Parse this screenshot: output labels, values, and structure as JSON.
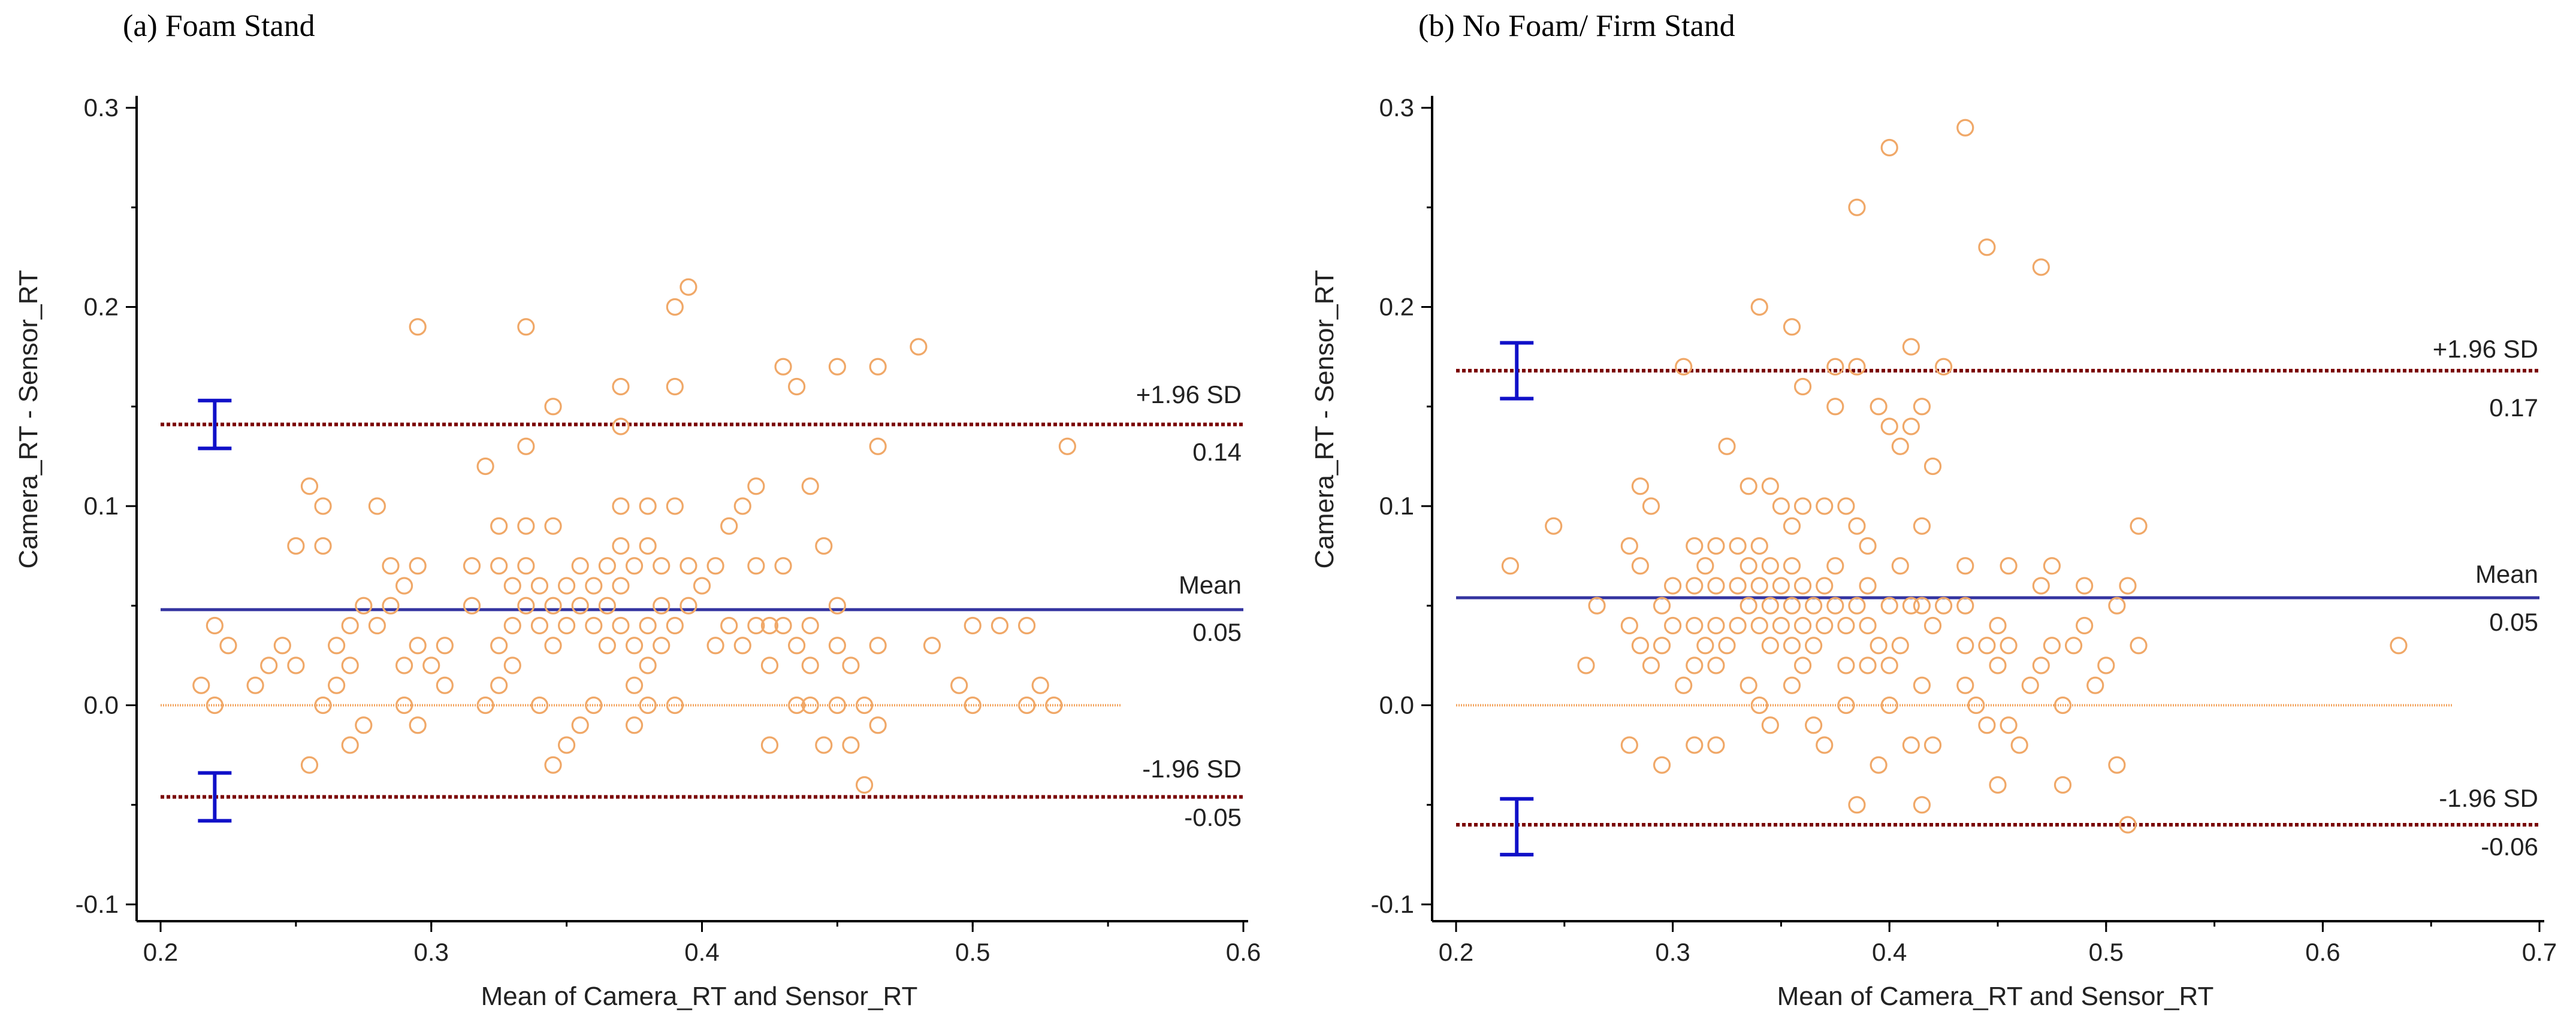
{
  "chart_data": [
    {
      "type": "scatter",
      "title": "(a) Foam Stand",
      "xlabel": "Mean of Camera_RT and Sensor_RT",
      "ylabel": "Camera_RT - Sensor_RT",
      "xlim": [
        0.2,
        0.6
      ],
      "ylim": [
        -0.1,
        0.3
      ],
      "xticks": [
        "0.2",
        "0.3",
        "0.4",
        "0.5",
        "0.6"
      ],
      "yticks": [
        "-0.1",
        "0.0",
        "0.1",
        "0.2",
        "0.3"
      ],
      "zero_line_xrange": [
        0.2,
        0.555
      ],
      "mean": {
        "value": 0.048,
        "label": "Mean",
        "value_label": "0.05"
      },
      "upper_loa": {
        "value": 0.141,
        "label": "+1.96 SD",
        "value_label": "0.14",
        "ci": [
          0.129,
          0.153
        ]
      },
      "lower_loa": {
        "value": -0.046,
        "label": "-1.96 SD",
        "value_label": "-0.05",
        "ci": [
          -0.058,
          -0.034
        ]
      },
      "ci_x": 0.22,
      "points": [
        [
          0.215,
          0.01
        ],
        [
          0.22,
          0.0
        ],
        [
          0.22,
          0.04
        ],
        [
          0.225,
          0.03
        ],
        [
          0.235,
          0.01
        ],
        [
          0.24,
          0.02
        ],
        [
          0.245,
          0.03
        ],
        [
          0.25,
          0.08
        ],
        [
          0.25,
          0.02
        ],
        [
          0.255,
          0.11
        ],
        [
          0.255,
          -0.03
        ],
        [
          0.26,
          0.1
        ],
        [
          0.26,
          0.08
        ],
        [
          0.26,
          0.0
        ],
        [
          0.265,
          0.03
        ],
        [
          0.265,
          0.01
        ],
        [
          0.27,
          0.04
        ],
        [
          0.27,
          0.02
        ],
        [
          0.27,
          -0.02
        ],
        [
          0.275,
          0.05
        ],
        [
          0.275,
          -0.01
        ],
        [
          0.28,
          0.1
        ],
        [
          0.28,
          0.04
        ],
        [
          0.285,
          0.07
        ],
        [
          0.285,
          0.05
        ],
        [
          0.29,
          0.06
        ],
        [
          0.29,
          0.02
        ],
        [
          0.29,
          0.0
        ],
        [
          0.295,
          0.19
        ],
        [
          0.295,
          0.07
        ],
        [
          0.295,
          0.03
        ],
        [
          0.295,
          -0.01
        ],
        [
          0.3,
          0.02
        ],
        [
          0.305,
          0.03
        ],
        [
          0.305,
          0.01
        ],
        [
          0.315,
          0.07
        ],
        [
          0.315,
          0.05
        ],
        [
          0.32,
          0.12
        ],
        [
          0.32,
          0.0
        ],
        [
          0.325,
          0.09
        ],
        [
          0.325,
          0.07
        ],
        [
          0.325,
          0.03
        ],
        [
          0.325,
          0.01
        ],
        [
          0.33,
          0.06
        ],
        [
          0.33,
          0.04
        ],
        [
          0.33,
          0.02
        ],
        [
          0.335,
          0.19
        ],
        [
          0.335,
          0.13
        ],
        [
          0.335,
          0.09
        ],
        [
          0.335,
          0.07
        ],
        [
          0.335,
          0.05
        ],
        [
          0.34,
          0.06
        ],
        [
          0.34,
          0.04
        ],
        [
          0.34,
          0.0
        ],
        [
          0.345,
          0.15
        ],
        [
          0.345,
          0.09
        ],
        [
          0.345,
          0.05
        ],
        [
          0.345,
          0.03
        ],
        [
          0.345,
          -0.03
        ],
        [
          0.35,
          0.06
        ],
        [
          0.35,
          0.04
        ],
        [
          0.35,
          -0.02
        ],
        [
          0.355,
          0.07
        ],
        [
          0.355,
          0.05
        ],
        [
          0.355,
          -0.01
        ],
        [
          0.36,
          0.06
        ],
        [
          0.36,
          0.04
        ],
        [
          0.36,
          0.0
        ],
        [
          0.365,
          0.07
        ],
        [
          0.365,
          0.05
        ],
        [
          0.365,
          0.03
        ],
        [
          0.37,
          0.16
        ],
        [
          0.37,
          0.14
        ],
        [
          0.37,
          0.1
        ],
        [
          0.37,
          0.08
        ],
        [
          0.37,
          0.06
        ],
        [
          0.37,
          0.04
        ],
        [
          0.375,
          0.07
        ],
        [
          0.375,
          0.03
        ],
        [
          0.375,
          0.01
        ],
        [
          0.375,
          -0.01
        ],
        [
          0.38,
          0.1
        ],
        [
          0.38,
          0.08
        ],
        [
          0.38,
          0.04
        ],
        [
          0.38,
          0.02
        ],
        [
          0.38,
          0.0
        ],
        [
          0.385,
          0.07
        ],
        [
          0.385,
          0.05
        ],
        [
          0.385,
          0.03
        ],
        [
          0.39,
          0.2
        ],
        [
          0.39,
          0.16
        ],
        [
          0.39,
          0.1
        ],
        [
          0.39,
          0.04
        ],
        [
          0.39,
          0.0
        ],
        [
          0.395,
          0.21
        ],
        [
          0.395,
          0.07
        ],
        [
          0.395,
          0.05
        ],
        [
          0.4,
          0.06
        ],
        [
          0.405,
          0.07
        ],
        [
          0.405,
          0.03
        ],
        [
          0.41,
          0.09
        ],
        [
          0.41,
          0.04
        ],
        [
          0.415,
          0.1
        ],
        [
          0.415,
          0.03
        ],
        [
          0.42,
          0.11
        ],
        [
          0.42,
          0.07
        ],
        [
          0.42,
          0.04
        ],
        [
          0.425,
          0.04
        ],
        [
          0.425,
          0.02
        ],
        [
          0.425,
          -0.02
        ],
        [
          0.43,
          0.17
        ],
        [
          0.43,
          0.07
        ],
        [
          0.43,
          0.04
        ],
        [
          0.435,
          0.16
        ],
        [
          0.435,
          0.03
        ],
        [
          0.435,
          0.0
        ],
        [
          0.44,
          0.11
        ],
        [
          0.44,
          0.04
        ],
        [
          0.44,
          0.02
        ],
        [
          0.44,
          0.0
        ],
        [
          0.445,
          0.08
        ],
        [
          0.445,
          -0.02
        ],
        [
          0.45,
          0.17
        ],
        [
          0.45,
          0.05
        ],
        [
          0.45,
          0.03
        ],
        [
          0.45,
          0.0
        ],
        [
          0.455,
          0.02
        ],
        [
          0.455,
          -0.02
        ],
        [
          0.46,
          -0.04
        ],
        [
          0.46,
          0.0
        ],
        [
          0.465,
          0.17
        ],
        [
          0.465,
          0.13
        ],
        [
          0.465,
          0.03
        ],
        [
          0.465,
          -0.01
        ],
        [
          0.48,
          0.18
        ],
        [
          0.485,
          0.03
        ],
        [
          0.495,
          0.01
        ],
        [
          0.5,
          0.04
        ],
        [
          0.5,
          0.0
        ],
        [
          0.51,
          0.04
        ],
        [
          0.52,
          0.04
        ],
        [
          0.52,
          0.0
        ],
        [
          0.525,
          0.01
        ],
        [
          0.53,
          0.0
        ],
        [
          0.535,
          0.13
        ]
      ]
    },
    {
      "type": "scatter",
      "title": "(b) No Foam/ Firm Stand",
      "xlabel": "Mean of Camera_RT and Sensor_RT",
      "ylabel": "Camera_RT - Sensor_RT",
      "xlim": [
        0.2,
        0.7
      ],
      "ylim": [
        -0.1,
        0.3
      ],
      "xticks": [
        "0.2",
        "0.3",
        "0.4",
        "0.5",
        "0.6",
        "0.7"
      ],
      "yticks": [
        "-0.1",
        "0.0",
        "0.1",
        "0.2",
        "0.3"
      ],
      "zero_line_xrange": [
        0.2,
        0.66
      ],
      "mean": {
        "value": 0.054,
        "label": "Mean",
        "value_label": "0.05"
      },
      "upper_loa": {
        "value": 0.168,
        "label": "+1.96 SD",
        "value_label": "0.17",
        "ci": [
          0.154,
          0.182
        ]
      },
      "lower_loa": {
        "value": -0.06,
        "label": "-1.96 SD",
        "value_label": "-0.06",
        "ci": [
          -0.075,
          -0.047
        ]
      },
      "ci_x": 0.228,
      "points": [
        [
          0.225,
          0.07
        ],
        [
          0.245,
          0.09
        ],
        [
          0.26,
          0.02
        ],
        [
          0.265,
          0.05
        ],
        [
          0.28,
          0.08
        ],
        [
          0.28,
          0.04
        ],
        [
          0.28,
          -0.02
        ],
        [
          0.285,
          0.11
        ],
        [
          0.285,
          0.07
        ],
        [
          0.285,
          0.03
        ],
        [
          0.29,
          0.1
        ],
        [
          0.29,
          0.02
        ],
        [
          0.295,
          0.05
        ],
        [
          0.295,
          0.03
        ],
        [
          0.295,
          -0.03
        ],
        [
          0.3,
          0.06
        ],
        [
          0.3,
          0.04
        ],
        [
          0.305,
          0.17
        ],
        [
          0.305,
          0.01
        ],
        [
          0.31,
          0.08
        ],
        [
          0.31,
          0.06
        ],
        [
          0.31,
          0.04
        ],
        [
          0.31,
          0.02
        ],
        [
          0.31,
          -0.02
        ],
        [
          0.315,
          0.07
        ],
        [
          0.315,
          0.03
        ],
        [
          0.32,
          0.08
        ],
        [
          0.32,
          0.06
        ],
        [
          0.32,
          0.04
        ],
        [
          0.32,
          0.02
        ],
        [
          0.32,
          -0.02
        ],
        [
          0.325,
          0.13
        ],
        [
          0.325,
          0.03
        ],
        [
          0.33,
          0.08
        ],
        [
          0.33,
          0.06
        ],
        [
          0.33,
          0.04
        ],
        [
          0.335,
          0.11
        ],
        [
          0.335,
          0.07
        ],
        [
          0.335,
          0.05
        ],
        [
          0.335,
          0.01
        ],
        [
          0.34,
          0.2
        ],
        [
          0.34,
          0.08
        ],
        [
          0.34,
          0.06
        ],
        [
          0.34,
          0.04
        ],
        [
          0.34,
          0.0
        ],
        [
          0.345,
          0.11
        ],
        [
          0.345,
          0.07
        ],
        [
          0.345,
          0.05
        ],
        [
          0.345,
          0.03
        ],
        [
          0.345,
          -0.01
        ],
        [
          0.35,
          0.1
        ],
        [
          0.35,
          0.06
        ],
        [
          0.35,
          0.04
        ],
        [
          0.355,
          0.19
        ],
        [
          0.355,
          0.09
        ],
        [
          0.355,
          0.07
        ],
        [
          0.355,
          0.05
        ],
        [
          0.355,
          0.03
        ],
        [
          0.355,
          0.01
        ],
        [
          0.36,
          0.16
        ],
        [
          0.36,
          0.1
        ],
        [
          0.36,
          0.06
        ],
        [
          0.36,
          0.04
        ],
        [
          0.36,
          0.02
        ],
        [
          0.365,
          0.05
        ],
        [
          0.365,
          0.03
        ],
        [
          0.365,
          -0.01
        ],
        [
          0.37,
          0.1
        ],
        [
          0.37,
          0.06
        ],
        [
          0.37,
          0.04
        ],
        [
          0.37,
          -0.02
        ],
        [
          0.375,
          0.17
        ],
        [
          0.375,
          0.15
        ],
        [
          0.375,
          0.07
        ],
        [
          0.375,
          0.05
        ],
        [
          0.38,
          0.1
        ],
        [
          0.38,
          0.04
        ],
        [
          0.38,
          0.02
        ],
        [
          0.38,
          0.0
        ],
        [
          0.385,
          0.25
        ],
        [
          0.385,
          0.17
        ],
        [
          0.385,
          0.09
        ],
        [
          0.385,
          0.05
        ],
        [
          0.385,
          -0.05
        ],
        [
          0.39,
          0.08
        ],
        [
          0.39,
          0.06
        ],
        [
          0.39,
          0.04
        ],
        [
          0.39,
          0.02
        ],
        [
          0.395,
          0.15
        ],
        [
          0.395,
          0.03
        ],
        [
          0.395,
          -0.03
        ],
        [
          0.4,
          0.28
        ],
        [
          0.4,
          0.14
        ],
        [
          0.4,
          0.05
        ],
        [
          0.4,
          0.02
        ],
        [
          0.4,
          0.0
        ],
        [
          0.405,
          0.13
        ],
        [
          0.405,
          0.07
        ],
        [
          0.405,
          0.03
        ],
        [
          0.41,
          0.18
        ],
        [
          0.41,
          0.14
        ],
        [
          0.41,
          0.05
        ],
        [
          0.41,
          -0.02
        ],
        [
          0.415,
          0.15
        ],
        [
          0.415,
          0.09
        ],
        [
          0.415,
          0.05
        ],
        [
          0.415,
          0.01
        ],
        [
          0.415,
          -0.05
        ],
        [
          0.42,
          0.12
        ],
        [
          0.42,
          0.04
        ],
        [
          0.42,
          -0.02
        ],
        [
          0.425,
          0.17
        ],
        [
          0.425,
          0.05
        ],
        [
          0.435,
          0.29
        ],
        [
          0.435,
          0.07
        ],
        [
          0.435,
          0.05
        ],
        [
          0.435,
          0.03
        ],
        [
          0.435,
          0.01
        ],
        [
          0.44,
          0.0
        ],
        [
          0.445,
          0.23
        ],
        [
          0.445,
          0.03
        ],
        [
          0.445,
          -0.01
        ],
        [
          0.45,
          0.04
        ],
        [
          0.45,
          0.02
        ],
        [
          0.45,
          -0.04
        ],
        [
          0.455,
          0.07
        ],
        [
          0.455,
          0.03
        ],
        [
          0.455,
          -0.01
        ],
        [
          0.46,
          -0.02
        ],
        [
          0.465,
          0.01
        ],
        [
          0.47,
          0.22
        ],
        [
          0.47,
          0.06
        ],
        [
          0.47,
          0.02
        ],
        [
          0.475,
          0.07
        ],
        [
          0.475,
          0.03
        ],
        [
          0.48,
          0.0
        ],
        [
          0.48,
          -0.04
        ],
        [
          0.485,
          0.03
        ],
        [
          0.49,
          0.06
        ],
        [
          0.49,
          0.04
        ],
        [
          0.495,
          0.01
        ],
        [
          0.5,
          0.02
        ],
        [
          0.505,
          0.05
        ],
        [
          0.505,
          -0.03
        ],
        [
          0.51,
          0.06
        ],
        [
          0.51,
          -0.06
        ],
        [
          0.515,
          0.09
        ],
        [
          0.515,
          0.03
        ],
        [
          0.635,
          0.03
        ]
      ]
    }
  ]
}
